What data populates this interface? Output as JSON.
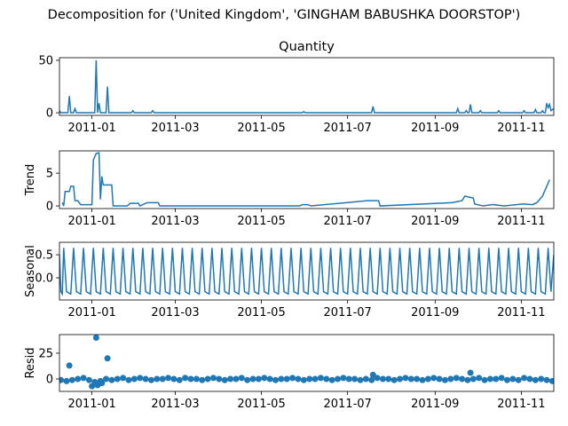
{
  "title": "Decomposition for ('United Kingdom', 'GINGHAM BABUSHKA DOORSTOP')",
  "chart_data": [
    {
      "type": "line",
      "title": "Quantity",
      "color": "#1f77b4",
      "x": [
        0,
        1,
        6,
        7,
        8,
        10,
        11,
        12,
        25,
        26,
        27,
        28,
        29,
        33,
        34,
        35,
        51,
        52,
        53,
        65,
        66,
        67,
        172,
        173,
        174,
        221,
        222,
        223,
        281,
        282,
        283,
        287,
        288,
        289,
        290,
        291,
        292,
        297,
        298,
        299,
        310,
        311,
        312,
        328,
        329,
        330,
        336,
        337,
        338,
        341,
        342,
        343,
        344,
        345,
        346,
        347,
        348,
        350
      ],
      "values": [
        2,
        0,
        0,
        16,
        0,
        0,
        4,
        0,
        0,
        50,
        0,
        9,
        0,
        0,
        25,
        0,
        0,
        2,
        0,
        0,
        2,
        0,
        0,
        1,
        0,
        0,
        6,
        0,
        0,
        4,
        0,
        0,
        2,
        0,
        0,
        8,
        0,
        0,
        2,
        0,
        0,
        2,
        0,
        0,
        2,
        0,
        0,
        3,
        0,
        0,
        2,
        0,
        0,
        9,
        5,
        8,
        2,
        4
      ],
      "xlim": [
        0,
        350
      ],
      "xticks": [
        {
          "value": 23,
          "label": "2011-01"
        },
        {
          "value": 82,
          "label": "2011-03"
        },
        {
          "value": 143,
          "label": "2011-05"
        },
        {
          "value": 204,
          "label": "2011-07"
        },
        {
          "value": 266,
          "label": "2011-09"
        },
        {
          "value": 327,
          "label": "2011-11"
        }
      ],
      "ylim": [
        -2.5,
        52.5
      ],
      "yticks": [
        0,
        50
      ]
    },
    {
      "type": "line",
      "ylabel": "Trend",
      "color": "#1f77b4",
      "x": [
        2,
        3,
        4,
        7,
        8,
        10,
        11,
        13,
        15,
        23,
        24,
        26,
        28,
        29,
        30,
        31,
        37,
        38,
        48,
        50,
        56,
        57,
        62,
        70,
        71,
        170,
        172,
        176,
        178,
        218,
        226,
        227,
        278,
        285,
        287,
        293,
        294,
        300,
        307,
        315,
        328,
        335,
        338,
        342,
        346,
        347
      ],
      "values": [
        0.5,
        0,
        2.2,
        2.2,
        3,
        3,
        0.8,
        0.8,
        0.2,
        0.2,
        7,
        8,
        8.1,
        1,
        4.5,
        3.2,
        3.2,
        0,
        0,
        0.4,
        0.4,
        0,
        0.5,
        0.5,
        0,
        0,
        0.2,
        0.2,
        0,
        0.8,
        0.8,
        0,
        0.5,
        0.8,
        1.5,
        1.2,
        0.3,
        0,
        0.2,
        0,
        0.3,
        0.2,
        0.5,
        1.5,
        3.5,
        4
      ],
      "xlim": [
        0,
        350
      ],
      "xticks": [
        {
          "value": 23,
          "label": "2011-01"
        },
        {
          "value": 82,
          "label": "2011-03"
        },
        {
          "value": 143,
          "label": "2011-05"
        },
        {
          "value": 204,
          "label": "2011-07"
        },
        {
          "value": 266,
          "label": "2011-09"
        },
        {
          "value": 327,
          "label": "2011-11"
        }
      ],
      "ylim": [
        -0.4,
        8.4
      ],
      "yticks": [
        0,
        5
      ]
    },
    {
      "type": "line",
      "ylabel": "Seasonal",
      "color": "#1f77b4",
      "x": [
        0,
        1,
        2,
        3,
        5,
        8,
        10,
        12,
        15,
        17,
        19,
        22,
        24,
        26,
        29,
        31,
        33,
        36,
        38,
        40,
        43,
        45,
        47,
        50,
        52,
        54,
        57,
        59,
        61,
        64,
        66,
        68,
        71,
        73,
        75,
        78,
        80,
        82,
        85,
        87,
        89,
        92,
        94,
        96,
        99,
        101,
        103,
        106,
        108,
        110,
        113,
        115,
        117,
        120,
        122,
        124,
        127,
        129,
        131,
        134,
        136,
        138,
        141,
        143,
        145,
        148,
        150,
        152,
        155,
        157,
        159,
        162,
        164,
        166,
        169,
        171,
        173,
        176,
        178,
        180,
        183,
        185,
        187,
        190,
        192,
        194,
        197,
        199,
        201,
        204,
        206,
        208,
        211,
        213,
        215,
        218,
        220,
        222,
        225,
        227,
        229,
        232,
        234,
        236,
        239,
        241,
        243,
        246,
        248,
        250,
        253,
        255,
        257,
        260,
        262,
        264,
        267,
        269,
        271,
        274,
        276,
        278,
        281,
        283,
        285,
        288,
        290,
        292,
        295,
        297,
        299,
        302,
        304,
        306,
        309,
        311,
        313,
        316,
        318,
        320,
        323,
        325,
        327,
        330,
        332,
        334,
        337,
        339,
        341,
        344,
        346,
        348,
        350
      ],
      "values": [
        0.5,
        -0.3,
        -0.35,
        0.65,
        -0.3,
        -0.35,
        0.65,
        -0.3,
        -0.35,
        0.65,
        -0.3,
        -0.35,
        0.65,
        -0.3,
        -0.35,
        0.65,
        -0.3,
        -0.35,
        0.65,
        -0.3,
        -0.35,
        0.65,
        -0.3,
        -0.35,
        0.65,
        -0.3,
        -0.35,
        0.65,
        -0.3,
        -0.35,
        0.65,
        -0.3,
        -0.35,
        0.65,
        -0.3,
        -0.35,
        0.65,
        -0.3,
        -0.35,
        0.65,
        -0.3,
        -0.35,
        0.65,
        -0.3,
        -0.35,
        0.65,
        -0.3,
        -0.35,
        0.65,
        -0.3,
        -0.35,
        0.65,
        -0.3,
        -0.35,
        0.65,
        -0.3,
        -0.35,
        0.65,
        -0.3,
        -0.35,
        0.65,
        -0.3,
        -0.35,
        0.65,
        -0.3,
        -0.35,
        0.65,
        -0.3,
        -0.35,
        0.65,
        -0.3,
        -0.35,
        0.65,
        -0.3,
        -0.35,
        0.65,
        -0.3,
        -0.35,
        0.65,
        -0.3,
        -0.35,
        0.65,
        -0.3,
        -0.35,
        0.65,
        -0.3,
        -0.35,
        0.65,
        -0.3,
        -0.35,
        0.65,
        -0.3,
        -0.35,
        0.65,
        -0.3,
        -0.35,
        0.65,
        -0.3,
        -0.35,
        0.65,
        -0.3,
        -0.35,
        0.65,
        -0.3,
        -0.35,
        0.65,
        -0.3,
        -0.35,
        0.65,
        -0.3,
        -0.35,
        0.65,
        -0.3,
        -0.35,
        0.65,
        -0.3,
        -0.35,
        0.65,
        -0.3,
        -0.35,
        0.65,
        -0.3,
        -0.35,
        0.65,
        -0.3,
        -0.35,
        0.65,
        -0.3,
        -0.35,
        0.65,
        -0.3,
        -0.35,
        0.65,
        -0.3,
        -0.35,
        0.65,
        -0.3,
        -0.35,
        0.65,
        -0.3,
        -0.35,
        0.65,
        -0.3,
        -0.35,
        0.65,
        -0.3,
        -0.35,
        0.65,
        -0.3,
        -0.35,
        0.65,
        -0.3,
        0.5
      ],
      "xlim": [
        0,
        350
      ],
      "xticks": [
        {
          "value": 23,
          "label": "2011-01"
        },
        {
          "value": 82,
          "label": "2011-03"
        },
        {
          "value": 143,
          "label": "2011-05"
        },
        {
          "value": 204,
          "label": "2011-07"
        },
        {
          "value": 266,
          "label": "2011-09"
        },
        {
          "value": 327,
          "label": "2011-11"
        }
      ],
      "ylim": [
        -0.48,
        0.77
      ],
      "yticks": [
        {
          "value": 0,
          "label": "0.0"
        },
        0.5
      ]
    },
    {
      "type": "scatter",
      "ylabel": "Resid",
      "color": "#1f77b4",
      "x": [
        1,
        5,
        9,
        13,
        17,
        21,
        25,
        29,
        33,
        37,
        41,
        45,
        49,
        53,
        57,
        61,
        65,
        69,
        73,
        77,
        81,
        85,
        89,
        93,
        97,
        101,
        105,
        109,
        113,
        117,
        121,
        125,
        129,
        133,
        137,
        141,
        145,
        149,
        153,
        157,
        161,
        165,
        169,
        173,
        177,
        181,
        185,
        189,
        193,
        197,
        201,
        205,
        209,
        213,
        217,
        221,
        225,
        229,
        233,
        237,
        241,
        245,
        249,
        253,
        257,
        261,
        265,
        269,
        273,
        277,
        281,
        285,
        289,
        293,
        297,
        301,
        305,
        309,
        313,
        317,
        321,
        325,
        329,
        333,
        337,
        341,
        345,
        349,
        7,
        26,
        34,
        222,
        291,
        23,
        27,
        30
      ],
      "values": [
        -1,
        -2,
        -1,
        0,
        1,
        -1,
        -3,
        -2,
        0,
        -1,
        0,
        1,
        -1,
        0,
        1,
        0,
        -1,
        0,
        0,
        1,
        0,
        -1,
        1,
        0,
        0,
        -1,
        0,
        1,
        0,
        -1,
        0,
        0,
        1,
        -1,
        0,
        0,
        1,
        0,
        -1,
        0,
        0,
        1,
        0,
        -1,
        0,
        0,
        1,
        0,
        -1,
        0,
        1,
        0,
        0,
        -1,
        0,
        -1,
        1,
        0,
        0,
        -1,
        0,
        1,
        0,
        0,
        -1,
        0,
        1,
        0,
        -1,
        0,
        1,
        0,
        -1,
        0,
        1,
        -1,
        0,
        0,
        1,
        -1,
        0,
        -1,
        1,
        0,
        -1,
        0,
        -1,
        -2,
        13,
        40,
        20,
        4,
        6,
        -7,
        -6,
        -4
      ],
      "xlim": [
        0,
        350
      ],
      "xticks": [
        {
          "value": 23,
          "label": "2011-01"
        },
        {
          "value": 82,
          "label": "2011-03"
        },
        {
          "value": 143,
          "label": "2011-05"
        },
        {
          "value": 204,
          "label": "2011-07"
        },
        {
          "value": 266,
          "label": "2011-09"
        },
        {
          "value": 327,
          "label": "2011-11"
        }
      ],
      "ylim": [
        -12,
        43
      ],
      "yticks": [
        0,
        25
      ]
    }
  ]
}
